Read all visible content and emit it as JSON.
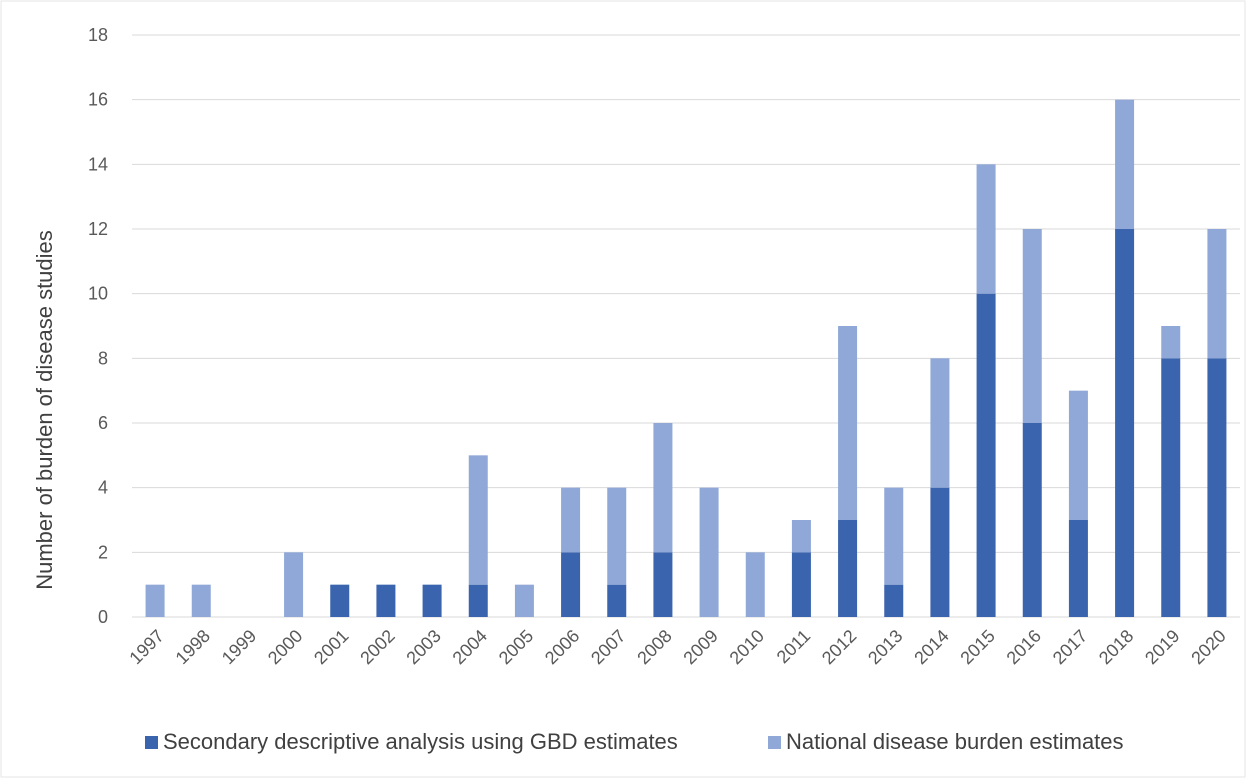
{
  "chart_data": {
    "type": "bar",
    "stacked": true,
    "title": "",
    "xlabel": "",
    "ylabel": "Number of burden of disease studies",
    "ylim": [
      0,
      18
    ],
    "yticks": [
      "0",
      "2",
      "4",
      "6",
      "8",
      "10",
      "12",
      "14",
      "16",
      "18"
    ],
    "grid": true,
    "legend_position": "bottom",
    "categories": [
      "1997",
      "1998",
      "1999",
      "2000",
      "2001",
      "2002",
      "2003",
      "2004",
      "2005",
      "2006",
      "2007",
      "2008",
      "2009",
      "2010",
      "2011",
      "2012",
      "2013",
      "2014",
      "2015",
      "2016",
      "2017",
      "2018",
      "2019",
      "2020"
    ],
    "series": [
      {
        "name": "Secondary descriptive analysis using GBD estimates",
        "color": "#3a64ad",
        "values": [
          0,
          0,
          0,
          0,
          1,
          1,
          1,
          1,
          0,
          2,
          1,
          2,
          0,
          0,
          2,
          3,
          1,
          4,
          10,
          6,
          3,
          12,
          8,
          8
        ]
      },
      {
        "name": "National disease burden estimates",
        "color": "#8fa8d8",
        "values": [
          1,
          1,
          0,
          2,
          0,
          0,
          0,
          4,
          1,
          2,
          3,
          4,
          4,
          2,
          1,
          6,
          3,
          4,
          4,
          6,
          4,
          4,
          1,
          4
        ]
      }
    ]
  }
}
